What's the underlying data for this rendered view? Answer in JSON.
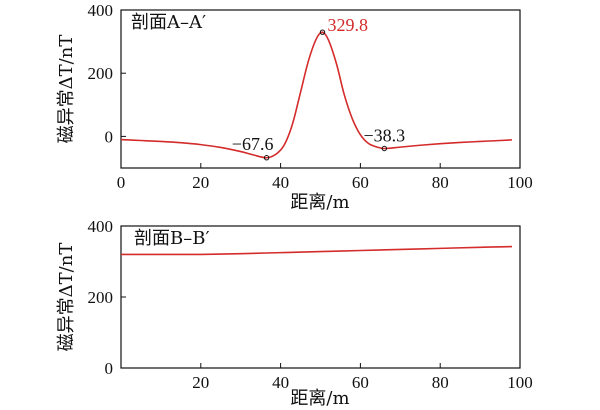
{
  "chart_data": [
    {
      "type": "line",
      "title": "剖面A–A′",
      "xlabel": "距离/m",
      "ylabel": "磁异常ΔT/nT",
      "xlim": [
        0,
        100
      ],
      "ylim": [
        -100,
        400
      ],
      "xticks": [
        "0",
        "20",
        "40",
        "60",
        "80",
        "100"
      ],
      "yticks": [
        "0",
        "200",
        "400"
      ],
      "grid": false,
      "series": [
        {
          "color": "#d42b2b",
          "x": [
            0,
            5,
            10,
            15,
            20,
            25,
            30,
            33,
            36.5,
            39,
            41,
            43,
            45,
            47,
            49,
            50.5,
            52,
            54,
            56,
            58,
            60,
            62,
            64,
            66,
            70,
            75,
            80,
            85,
            90,
            95,
            98
          ],
          "y": [
            -10,
            -13,
            -16,
            -20,
            -26,
            -35,
            -48,
            -58,
            -67.6,
            -55,
            -25,
            40,
            140,
            240,
            310,
            329.8,
            305,
            230,
            130,
            55,
            5,
            -22,
            -33,
            -38.3,
            -34,
            -28,
            -23,
            -19,
            -16,
            -13,
            -11
          ]
        }
      ],
      "annotations": [
        {
          "x": 36.5,
          "y": -67.6,
          "text": "−67.6",
          "color": "#111111"
        },
        {
          "x": 50.5,
          "y": 329.8,
          "text": "329.8",
          "color": "#d42b2b"
        },
        {
          "x": 66,
          "y": -38.3,
          "text": "−38.3",
          "color": "#111111"
        }
      ]
    },
    {
      "type": "line",
      "title": "剖面B–B′",
      "xlabel": "距离/m",
      "ylabel": "磁异常ΔT/nT",
      "xlim": [
        0,
        100
      ],
      "ylim": [
        0,
        400
      ],
      "xticks": [
        "20",
        "40",
        "60",
        "80",
        "100"
      ],
      "yticks": [
        "0",
        "200",
        "400"
      ],
      "grid": false,
      "series": [
        {
          "color": "#d42b2b",
          "x": [
            0,
            10,
            20,
            30,
            40,
            50,
            60,
            70,
            80,
            90,
            98
          ],
          "y": [
            320,
            320,
            320,
            322,
            325,
            328,
            331,
            334,
            337,
            340,
            342
          ]
        }
      ]
    }
  ]
}
